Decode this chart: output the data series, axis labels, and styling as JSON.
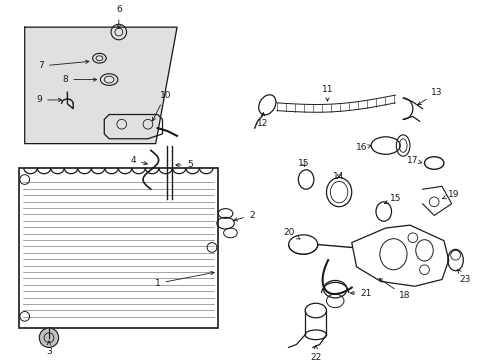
{
  "bg_color": "#ffffff",
  "box_bg": "#e0e0e0",
  "lc": "#1a1a1a",
  "fs": 6.5,
  "fig_w": 4.89,
  "fig_h": 3.6,
  "dpi": 100,
  "xlim": [
    0,
    489
  ],
  "ylim": [
    0,
    360
  ]
}
